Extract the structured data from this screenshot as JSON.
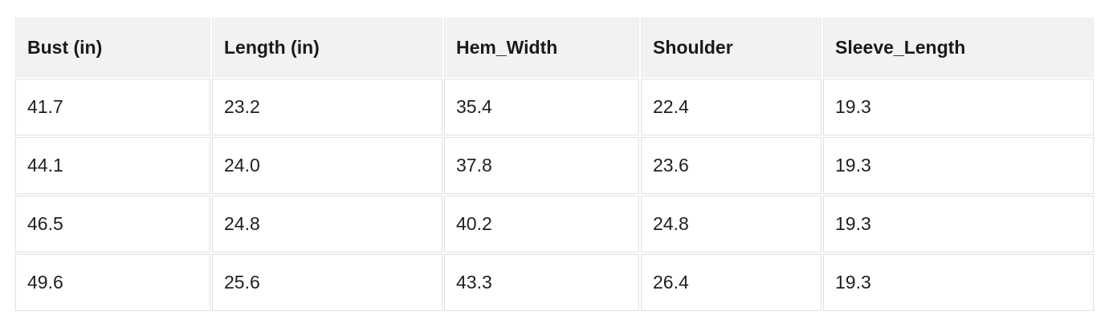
{
  "table": {
    "columns": [
      "Bust (in)",
      "Length (in)",
      "Hem_Width",
      "Shoulder",
      "Sleeve_Length"
    ],
    "rows": [
      [
        "41.7",
        "23.2",
        "35.4",
        "22.4",
        "19.3"
      ],
      [
        "44.1",
        "24.0",
        "37.8",
        "23.6",
        "19.3"
      ],
      [
        "46.5",
        "24.8",
        "40.2",
        "24.8",
        "19.3"
      ],
      [
        "49.6",
        "25.6",
        "43.3",
        "26.4",
        "19.3"
      ]
    ],
    "colors": {
      "header_bg": "#f2f2f2",
      "row_bg": "#ffffff",
      "border": "#e0e0e0",
      "text": "#1f1f1f"
    }
  }
}
